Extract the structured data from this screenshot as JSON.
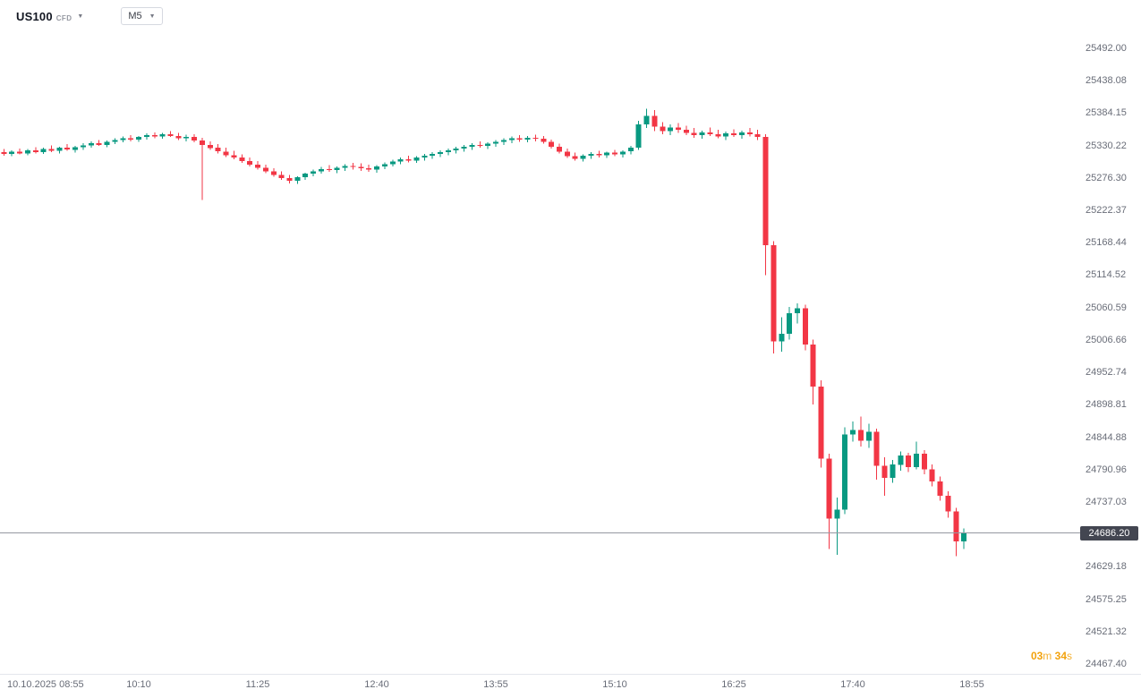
{
  "toolbar": {
    "symbol": "US100",
    "symbol_type": "CFD",
    "timeframe": "M5"
  },
  "countdown": {
    "minutes": "03",
    "minutes_unit": "m",
    "seconds": "34",
    "seconds_unit": "s"
  },
  "chart_data": {
    "type": "candlestick",
    "symbol": "US100",
    "instrument_type": "CFD",
    "timeframe": "M5",
    "date": "10.10.2025",
    "start_time": "08:45",
    "interval_minutes": 5,
    "last_price": 24686.2,
    "last_price_label": "24686.20",
    "colors": {
      "up": "#089981",
      "down": "#f23645",
      "price_line": "#9598a1",
      "badge_bg": "#434651",
      "axis_text": "#696d78",
      "countdown": "#f2a20d"
    },
    "price_axis": {
      "top_price": 25573,
      "bottom_price": 24452
    },
    "price_axis_labels": [
      "25492.00",
      "25438.08",
      "25384.15",
      "25330.22",
      "25276.30",
      "25222.37",
      "25168.44",
      "25114.52",
      "25060.59",
      "25006.66",
      "24952.74",
      "24898.81",
      "24844.88",
      "24790.96",
      "24737.03",
      "24629.18",
      "24575.25",
      "24521.32",
      "24467.40"
    ],
    "time_ticks": [
      {
        "label": "10.10.2025 08:55",
        "index": 2
      },
      {
        "label": "10:10",
        "index": 17
      },
      {
        "label": "11:25",
        "index": 32
      },
      {
        "label": "12:40",
        "index": 47
      },
      {
        "label": "13:55",
        "index": 62
      },
      {
        "label": "15:10",
        "index": 77
      },
      {
        "label": "16:25",
        "index": 92
      },
      {
        "label": "17:40",
        "index": 107
      },
      {
        "label": "18:55",
        "index": 122
      }
    ],
    "candles": [
      [
        25320,
        25325,
        25314,
        25317
      ],
      [
        25317,
        25323,
        25313,
        25321
      ],
      [
        25321,
        25326,
        25316,
        25318
      ],
      [
        25318,
        25325,
        25315,
        25323
      ],
      [
        25323,
        25328,
        25318,
        25320
      ],
      [
        25320,
        25327,
        25317,
        25325
      ],
      [
        25325,
        25331,
        25320,
        25322
      ],
      [
        25322,
        25329,
        25318,
        25327
      ],
      [
        25327,
        25333,
        25322,
        25324
      ],
      [
        25324,
        25330,
        25319,
        25328
      ],
      [
        25328,
        25335,
        25324,
        25331
      ],
      [
        25331,
        25338,
        25327,
        25335
      ],
      [
        25335,
        25340,
        25330,
        25332
      ],
      [
        25332,
        25339,
        25328,
        25337
      ],
      [
        25337,
        25343,
        25333,
        25340
      ],
      [
        25340,
        25346,
        25336,
        25343
      ],
      [
        25343,
        25348,
        25338,
        25341
      ],
      [
        25341,
        25347,
        25337,
        25345
      ],
      [
        25345,
        25351,
        25341,
        25348
      ],
      [
        25348,
        25353,
        25343,
        25346
      ],
      [
        25346,
        25352,
        25342,
        25350
      ],
      [
        25350,
        25355,
        25345,
        25347
      ],
      [
        25347,
        25352,
        25340,
        25343
      ],
      [
        25343,
        25349,
        25338,
        25345
      ],
      [
        25345,
        25350,
        25336,
        25339
      ],
      [
        25339,
        25344,
        25240,
        25332
      ],
      [
        25332,
        25338,
        25324,
        25327
      ],
      [
        25327,
        25333,
        25318,
        25321
      ],
      [
        25321,
        25327,
        25312,
        25315
      ],
      [
        25315,
        25322,
        25308,
        25311
      ],
      [
        25311,
        25316,
        25302,
        25305
      ],
      [
        25305,
        25311,
        25296,
        25299
      ],
      [
        25299,
        25305,
        25291,
        25294
      ],
      [
        25294,
        25299,
        25285,
        25288
      ],
      [
        25288,
        25293,
        25279,
        25282
      ],
      [
        25282,
        25288,
        25274,
        25277
      ],
      [
        25277,
        25282,
        25268,
        25272
      ],
      [
        25272,
        25280,
        25267,
        25278
      ],
      [
        25278,
        25286,
        25274,
        25284
      ],
      [
        25284,
        25291,
        25280,
        25288
      ],
      [
        25288,
        25295,
        25284,
        25292
      ],
      [
        25292,
        25298,
        25287,
        25290
      ],
      [
        25290,
        25296,
        25285,
        25294
      ],
      [
        25294,
        25300,
        25289,
        25297
      ],
      [
        25297,
        25302,
        25291,
        25295
      ],
      [
        25295,
        25301,
        25289,
        25293
      ],
      [
        25293,
        25299,
        25287,
        25291
      ],
      [
        25291,
        25298,
        25286,
        25296
      ],
      [
        25296,
        25303,
        25292,
        25300
      ],
      [
        25300,
        25307,
        25296,
        25304
      ],
      [
        25304,
        25311,
        25300,
        25308
      ],
      [
        25308,
        25314,
        25303,
        25306
      ],
      [
        25306,
        25313,
        25302,
        25311
      ],
      [
        25311,
        25317,
        25306,
        25314
      ],
      [
        25314,
        25320,
        25309,
        25317
      ],
      [
        25317,
        25323,
        25312,
        25320
      ],
      [
        25320,
        25326,
        25315,
        25323
      ],
      [
        25323,
        25329,
        25318,
        25326
      ],
      [
        25326,
        25332,
        25321,
        25329
      ],
      [
        25329,
        25335,
        25324,
        25332
      ],
      [
        25332,
        25338,
        25327,
        25330
      ],
      [
        25330,
        25336,
        25325,
        25334
      ],
      [
        25334,
        25340,
        25329,
        25337
      ],
      [
        25337,
        25343,
        25332,
        25340
      ],
      [
        25340,
        25346,
        25335,
        25343
      ],
      [
        25343,
        25348,
        25337,
        25341
      ],
      [
        25341,
        25347,
        25336,
        25344
      ],
      [
        25344,
        25349,
        25338,
        25342
      ],
      [
        25342,
        25347,
        25334,
        25337
      ],
      [
        25337,
        25341,
        25326,
        25329
      ],
      [
        25329,
        25334,
        25318,
        25321
      ],
      [
        25321,
        25326,
        25310,
        25313
      ],
      [
        25313,
        25319,
        25306,
        25309
      ],
      [
        25309,
        25316,
        25304,
        25314
      ],
      [
        25314,
        25320,
        25309,
        25317
      ],
      [
        25317,
        25322,
        25311,
        25315
      ],
      [
        25315,
        25321,
        25310,
        25319
      ],
      [
        25319,
        25324,
        25313,
        25316
      ],
      [
        25316,
        25323,
        25311,
        25321
      ],
      [
        25321,
        25330,
        25316,
        25327
      ],
      [
        25327,
        25372,
        25324,
        25366
      ],
      [
        25366,
        25392,
        25360,
        25380
      ],
      [
        25380,
        25390,
        25355,
        25362
      ],
      [
        25362,
        25370,
        25350,
        25355
      ],
      [
        25355,
        25366,
        25348,
        25361
      ],
      [
        25361,
        25368,
        25352,
        25357
      ],
      [
        25357,
        25364,
        25348,
        25352
      ],
      [
        25352,
        25360,
        25344,
        25348
      ],
      [
        25348,
        25356,
        25342,
        25353
      ],
      [
        25353,
        25361,
        25347,
        25350
      ],
      [
        25350,
        25357,
        25343,
        25346
      ],
      [
        25346,
        25354,
        25340,
        25351
      ],
      [
        25351,
        25358,
        25345,
        25348
      ],
      [
        25348,
        25356,
        25342,
        25353
      ],
      [
        25353,
        25360,
        25346,
        25350
      ],
      [
        25350,
        25357,
        25340,
        25345
      ],
      [
        25345,
        25350,
        25115,
        25165
      ],
      [
        25165,
        25172,
        24985,
        25005
      ],
      [
        25005,
        25045,
        24988,
        25018
      ],
      [
        25018,
        25062,
        25008,
        25052
      ],
      [
        25052,
        25068,
        25035,
        25060
      ],
      [
        25060,
        25066,
        24990,
        25000
      ],
      [
        25000,
        25008,
        24900,
        24930
      ],
      [
        24930,
        24940,
        24795,
        24810
      ],
      [
        24810,
        24818,
        24660,
        24710
      ],
      [
        24710,
        24745,
        24650,
        24725
      ],
      [
        24725,
        24862,
        24718,
        24850
      ],
      [
        24850,
        24872,
        24838,
        24858
      ],
      [
        24858,
        24880,
        24830,
        24840
      ],
      [
        24840,
        24868,
        24828,
        24855
      ],
      [
        24855,
        24860,
        24775,
        24798
      ],
      [
        24798,
        24812,
        24748,
        24778
      ],
      [
        24778,
        24808,
        24770,
        24800
      ],
      [
        24800,
        24822,
        24790,
        24815
      ],
      [
        24815,
        24820,
        24788,
        24796
      ],
      [
        24796,
        24838,
        24792,
        24818
      ],
      [
        24818,
        24824,
        24784,
        24792
      ],
      [
        24792,
        24800,
        24764,
        24772
      ],
      [
        24772,
        24780,
        24740,
        24748
      ],
      [
        24748,
        24756,
        24712,
        24722
      ],
      [
        24722,
        24728,
        24648,
        24672
      ],
      [
        24672,
        24694,
        24660,
        24686.2
      ]
    ]
  }
}
